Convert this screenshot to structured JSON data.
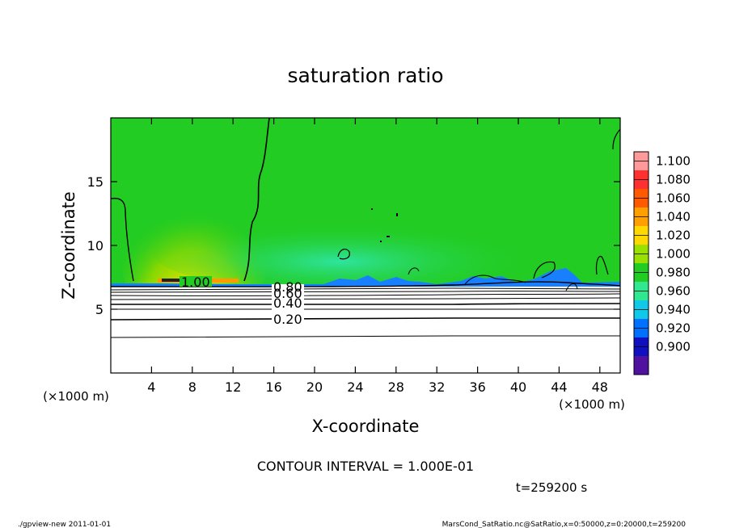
{
  "chart_data": {
    "type": "heatmap",
    "title": "saturation ratio",
    "xlabel": "X-coordinate",
    "ylabel": "Z-coordinate",
    "x_unit": "(×1000 m)",
    "y_unit": "(×1000 m)",
    "xlim": [
      0,
      50
    ],
    "ylim": [
      0,
      20
    ],
    "x_ticks": [
      4,
      8,
      12,
      16,
      20,
      24,
      28,
      32,
      36,
      40,
      44,
      48
    ],
    "y_ticks": [
      5,
      10,
      15
    ],
    "colorbar": {
      "levels": [
        "1.100",
        "1.080",
        "1.060",
        "1.040",
        "1.020",
        "1.000",
        "0.980",
        "0.960",
        "0.940",
        "0.920",
        "0.900"
      ],
      "colors": [
        "#ff9a9a",
        "#ff3030",
        "#ff5a00",
        "#ffa000",
        "#ffd800",
        "#9ae000",
        "#22cc22",
        "#30e890",
        "#10c8e8",
        "#0070ff",
        "#1010c0",
        "#5010a0"
      ]
    },
    "contour_labels": [
      {
        "text": "1.00",
        "x": 8.0,
        "z": 7.0
      },
      {
        "text": "0.80",
        "x": 17.0,
        "z": 6.7
      },
      {
        "text": "0.60",
        "x": 17.0,
        "z": 6.2
      },
      {
        "text": "0.40",
        "x": 17.0,
        "z": 5.4
      },
      {
        "text": "0.20",
        "x": 17.0,
        "z": 4.1
      }
    ],
    "contour_interval_text": "CONTOUR INTERVAL = 1.000E-01",
    "time_text": "t=259200 s"
  },
  "footer": {
    "left": "./gpview-new   2011-01-01",
    "right": "MarsCond_SatRatio.nc@SatRatio,x=0:50000,z=0:20000,t=259200"
  }
}
